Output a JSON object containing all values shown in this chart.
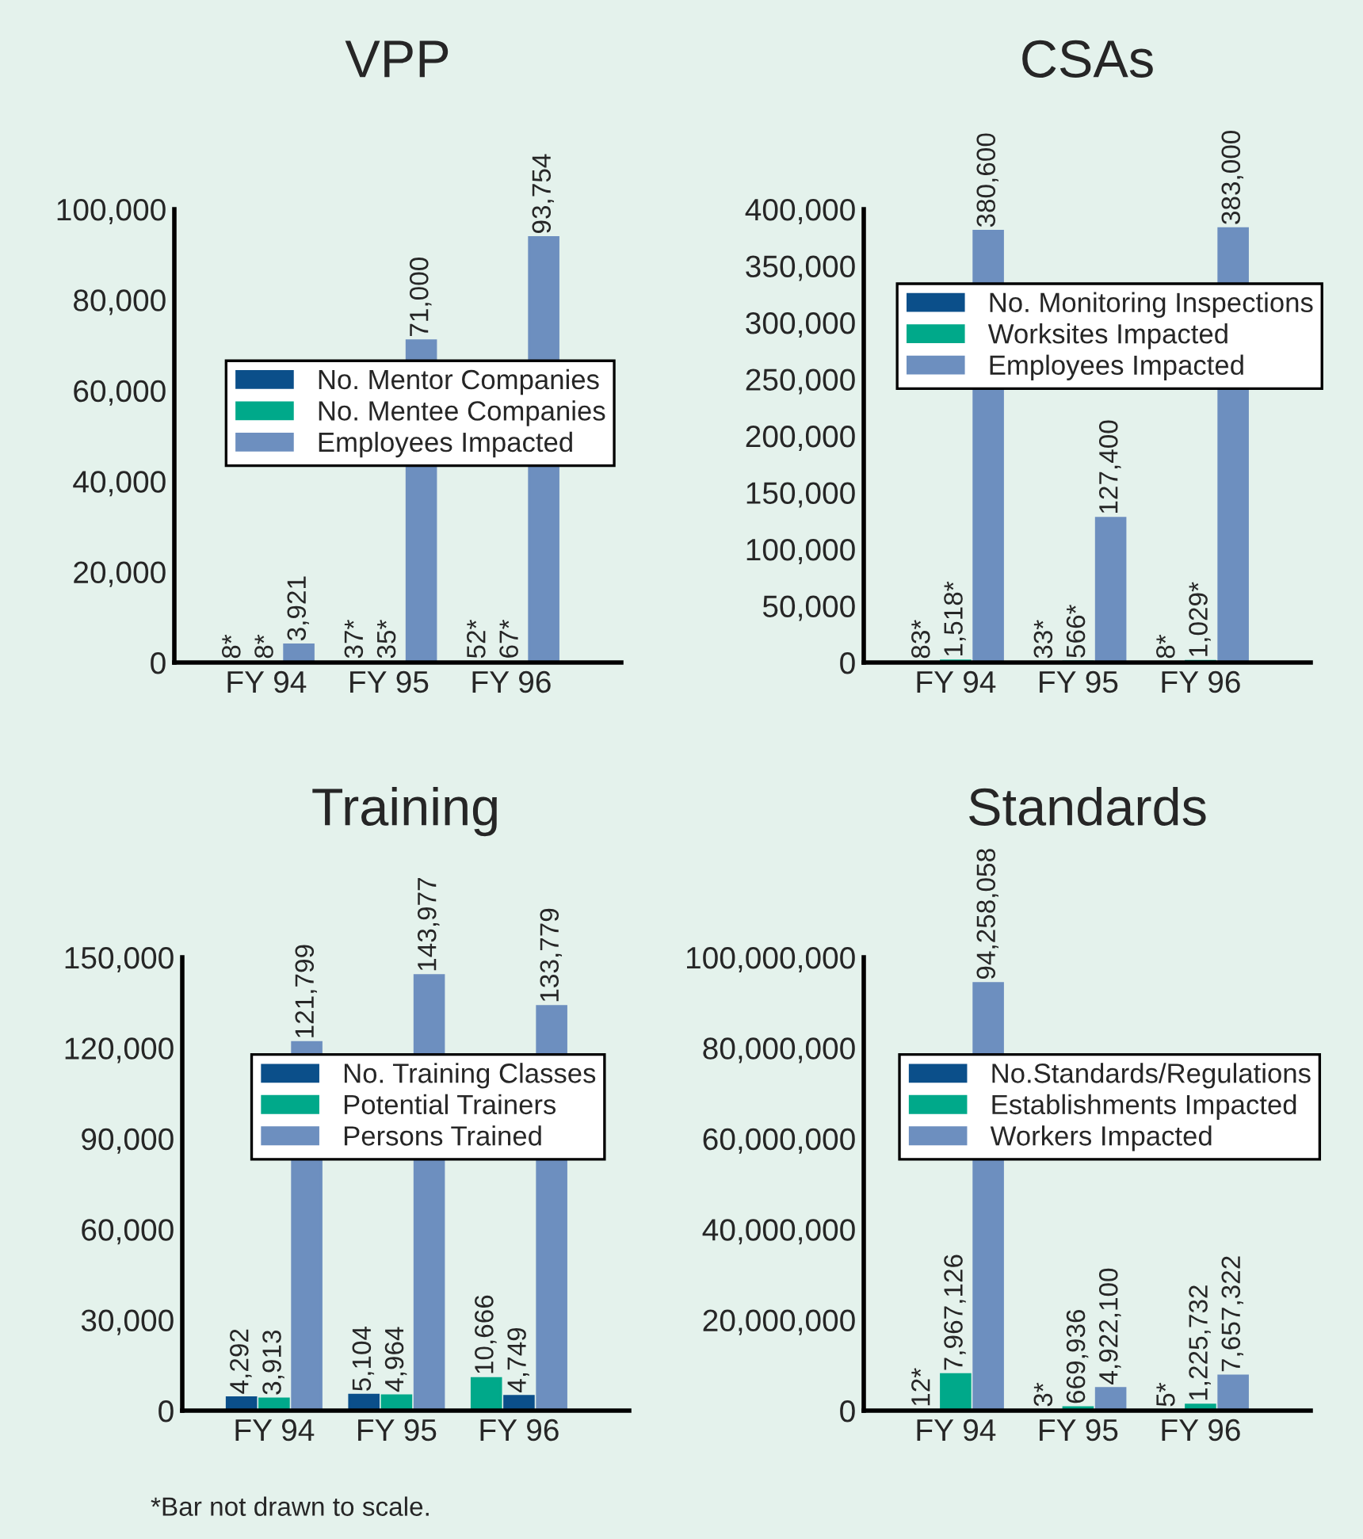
{
  "chart_data": [
    {
      "type": "bar",
      "title": "VPP",
      "categories": [
        "FY 94",
        "FY 95",
        "FY 96"
      ],
      "ylim": [
        0,
        100000
      ],
      "yticks": [
        {
          "value": 0,
          "label": "0"
        },
        {
          "value": 20000,
          "label": "20,000"
        },
        {
          "value": 40000,
          "label": "40,000"
        },
        {
          "value": 60000,
          "label": "60,000"
        },
        {
          "value": 80000,
          "label": "80,000"
        },
        {
          "value": 100000,
          "label": "100,000"
        }
      ],
      "legend": "center",
      "grid": false,
      "series": [
        {
          "name": "No. Mentor Companies",
          "color": "#0b4f8a",
          "values": [
            8,
            37,
            52
          ],
          "value_labels": [
            "8*",
            "37*",
            "52*"
          ]
        },
        {
          "name": "No. Mentee Companies",
          "color": "#00a98a",
          "values": [
            8,
            35,
            67
          ],
          "value_labels": [
            "8*",
            "35*",
            "67*"
          ]
        },
        {
          "name": "Employees Impacted",
          "color": "#6d8fbf",
          "values": [
            3921,
            71000,
            93754
          ],
          "value_labels": [
            "3,921",
            "71,000",
            "93,754"
          ]
        }
      ]
    },
    {
      "type": "bar",
      "title": "CSAs",
      "categories": [
        "FY 94",
        "FY 95",
        "FY 96"
      ],
      "ylim": [
        0,
        400000
      ],
      "yticks": [
        {
          "value": 0,
          "label": "0"
        },
        {
          "value": 50000,
          "label": "50,000"
        },
        {
          "value": 100000,
          "label": "100,000"
        },
        {
          "value": 150000,
          "label": "150,000"
        },
        {
          "value": 200000,
          "label": "200,000"
        },
        {
          "value": 250000,
          "label": "250,000"
        },
        {
          "value": 300000,
          "label": "300,000"
        },
        {
          "value": 350000,
          "label": "350,000"
        },
        {
          "value": 400000,
          "label": "400,000"
        }
      ],
      "legend": "center",
      "grid": false,
      "series": [
        {
          "name": "No. Monitoring Inspections",
          "color": "#0b4f8a",
          "values": [
            83,
            33,
            8
          ],
          "value_labels": [
            "83*",
            "33*",
            "8*"
          ]
        },
        {
          "name": "Worksites Impacted",
          "color": "#00a98a",
          "values": [
            1518,
            566,
            1029
          ],
          "value_labels": [
            "1,518*",
            "566*",
            "1,029*"
          ]
        },
        {
          "name": "Employees Impacted",
          "color": "#6d8fbf",
          "values": [
            380600,
            127400,
            383000
          ],
          "value_labels": [
            "380,600",
            "127,400",
            "383,000"
          ]
        }
      ]
    },
    {
      "type": "bar",
      "title": "Training",
      "categories": [
        "FY 94",
        "FY 95",
        "FY 96"
      ],
      "ylim": [
        0,
        150000
      ],
      "yticks": [
        {
          "value": 0,
          "label": "0"
        },
        {
          "value": 30000,
          "label": "30,000"
        },
        {
          "value": 60000,
          "label": "60,000"
        },
        {
          "value": 90000,
          "label": "90,000"
        },
        {
          "value": 120000,
          "label": "120,000"
        },
        {
          "value": 150000,
          "label": "150,000"
        }
      ],
      "legend": "center",
      "grid": false,
      "annotations": [
        "*Bar not drawn to scale."
      ],
      "series": [
        {
          "name": "No. Training Classes",
          "color": "#0b4f8a",
          "colors": [
            "#0b4f8a",
            "#0b4f8a",
            "#00a98a"
          ],
          "values": [
            4292,
            5104,
            10666
          ],
          "value_labels": [
            "4,292",
            "5,104",
            "10,666"
          ]
        },
        {
          "name": "Potential Trainers",
          "color": "#00a98a",
          "colors": [
            "#00a98a",
            "#00a98a",
            "#0b4f8a"
          ],
          "values": [
            3913,
            4964,
            4749
          ],
          "value_labels": [
            "3,913",
            "4,964",
            "4,749"
          ]
        },
        {
          "name": "Persons Trained",
          "color": "#6d8fbf",
          "values": [
            121799,
            143977,
            133779
          ],
          "value_labels": [
            "121,799",
            "143,977",
            "133,779"
          ]
        }
      ]
    },
    {
      "type": "bar",
      "title": "Standards",
      "categories": [
        "FY 94",
        "FY 95",
        "FY 96"
      ],
      "ylim": [
        0,
        100000000
      ],
      "yticks": [
        {
          "value": 0,
          "label": "0"
        },
        {
          "value": 20000000,
          "label": "20,000,000"
        },
        {
          "value": 40000000,
          "label": "40,000,000"
        },
        {
          "value": 60000000,
          "label": "60,000,000"
        },
        {
          "value": 80000000,
          "label": "80,000,000"
        },
        {
          "value": 100000000,
          "label": "100,000,000"
        }
      ],
      "legend": "center",
      "grid": false,
      "series": [
        {
          "name": "No.Standards/Regulations",
          "color": "#0b4f8a",
          "values": [
            12,
            3,
            5
          ],
          "value_labels": [
            "12*",
            "3*",
            "5*"
          ]
        },
        {
          "name": "Establishments Impacted",
          "color": "#00a98a",
          "values": [
            7967126,
            669936,
            1225732
          ],
          "value_labels": [
            "7,967,126",
            "669,936",
            "1,225,732"
          ]
        },
        {
          "name": "Workers Impacted",
          "color": "#6d8fbf",
          "values": [
            94258058,
            4922100,
            7657322
          ],
          "value_labels": [
            "94,258,058",
            "4,922,100",
            "7,657,322"
          ]
        }
      ]
    }
  ]
}
